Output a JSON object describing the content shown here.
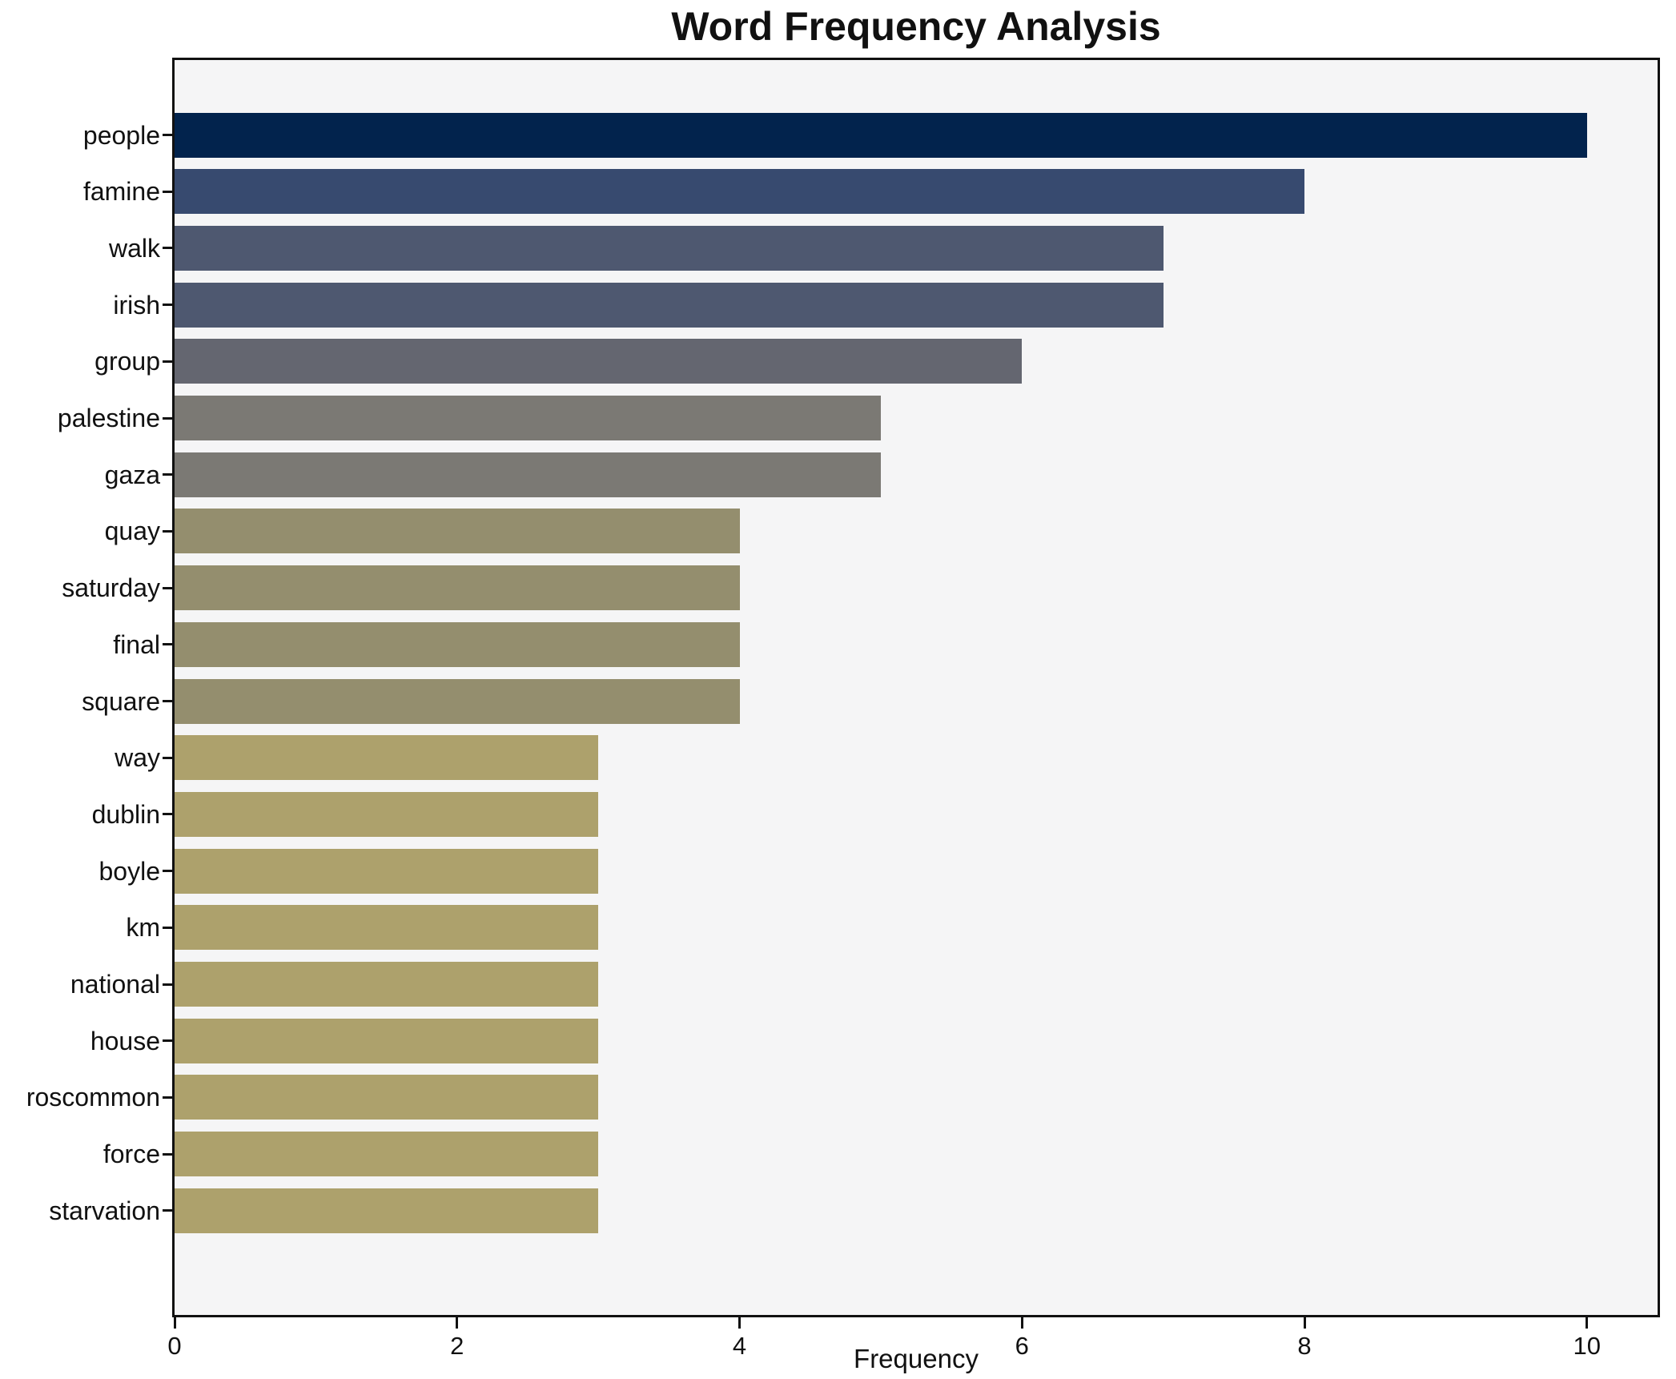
{
  "chart_data": {
    "type": "bar",
    "orientation": "horizontal",
    "title": "Word Frequency Analysis",
    "xlabel": "Frequency",
    "ylabel": "",
    "categories": [
      "people",
      "famine",
      "walk",
      "irish",
      "group",
      "palestine",
      "gaza",
      "quay",
      "saturday",
      "final",
      "square",
      "way",
      "dublin",
      "boyle",
      "km",
      "national",
      "house",
      "roscommon",
      "force",
      "starvation"
    ],
    "values": [
      10,
      8,
      7,
      7,
      6,
      5,
      5,
      4,
      4,
      4,
      4,
      3,
      3,
      3,
      3,
      3,
      3,
      3,
      3,
      3
    ],
    "bar_colors": [
      "#02234d",
      "#374a6f",
      "#4e5870",
      "#4e5870",
      "#646670",
      "#7b7974",
      "#7b7974",
      "#948e6e",
      "#948e6e",
      "#948e6e",
      "#948e6e",
      "#ada16c",
      "#ada16c",
      "#ada16c",
      "#ada16c",
      "#ada16c",
      "#ada16c",
      "#ada16c",
      "#ada16c",
      "#ada16c"
    ],
    "xlim": [
      0,
      10.5
    ],
    "x_ticks": [
      0,
      2,
      4,
      6,
      8,
      10
    ],
    "x_tick_labels": [
      "0",
      "2",
      "4",
      "6",
      "8",
      "10"
    ],
    "grid": false,
    "legend": null,
    "plot_background": "#f5f5f6",
    "figure_background": "#ffffff",
    "spine_color": "#111111"
  }
}
